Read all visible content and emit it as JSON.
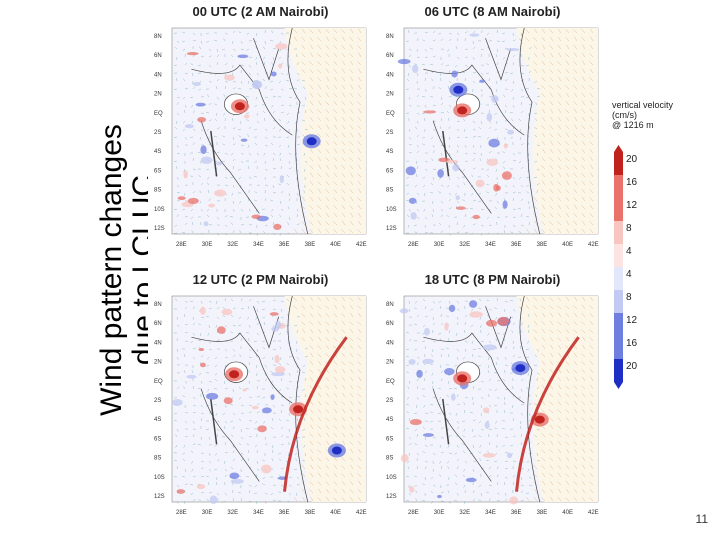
{
  "slide": {
    "title_line1": "Wind pattern changes",
    "title_line2": "due to LCLUC",
    "page_number": "11"
  },
  "panels": [
    {
      "title": "00 UTC (2 AM Nairobi)",
      "hotspots": [
        [
          0.35,
          0.38,
          "r"
        ],
        [
          0.72,
          0.55,
          "b"
        ]
      ]
    },
    {
      "title": "06 UTC (8 AM Nairobi)",
      "hotspots": [
        [
          0.3,
          0.4,
          "r"
        ],
        [
          0.28,
          0.3,
          "b"
        ]
      ]
    },
    {
      "title": "12 UTC (2 PM Nairobi)",
      "hotspots": [
        [
          0.32,
          0.38,
          "r"
        ],
        [
          0.65,
          0.55,
          "r"
        ],
        [
          0.85,
          0.75,
          "b"
        ]
      ]
    },
    {
      "title": "18 UTC (8 PM Nairobi)",
      "hotspots": [
        [
          0.3,
          0.4,
          "r"
        ],
        [
          0.6,
          0.35,
          "b"
        ],
        [
          0.7,
          0.6,
          "r"
        ]
      ]
    }
  ],
  "lat_labels": [
    "8N",
    "6N",
    "4N",
    "2N",
    "EQ",
    "2S",
    "4S",
    "6S",
    "8S",
    "10S",
    "12S"
  ],
  "lon_labels": [
    "28E",
    "30E",
    "32E",
    "34E",
    "36E",
    "38E",
    "40E",
    "42E"
  ],
  "colorbar": {
    "title_line1": "vertical velocity",
    "title_line2": "(cm/s)",
    "title_line3": "@ 1216 m",
    "ticks": [
      "20",
      "16",
      "12",
      "8",
      "4",
      "4",
      "8",
      "12",
      "16",
      "20"
    ],
    "colors": {
      "red_strong": "#c0221e",
      "red_mid": "#e9726b",
      "red_light": "#f7c6c1",
      "blue_light": "#c2c9f2",
      "blue_mid": "#6f7fe0",
      "blue_strong": "#1f2fc6"
    }
  }
}
